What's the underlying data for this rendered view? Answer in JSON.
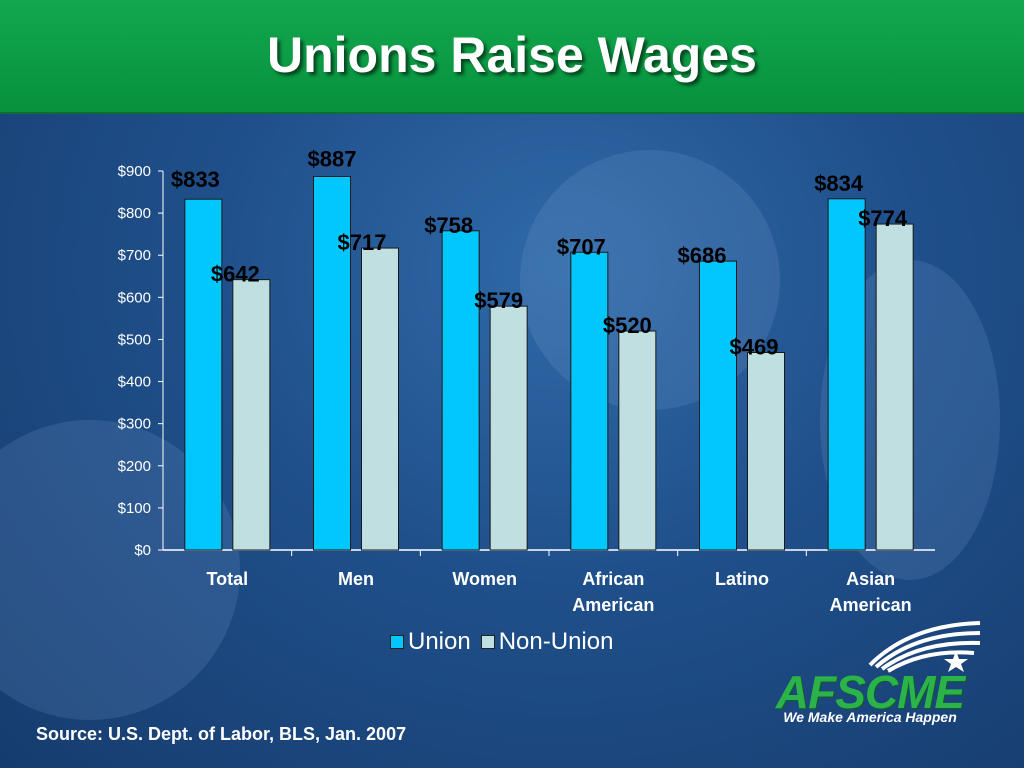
{
  "title": "Unions Raise Wages",
  "source": "Source: U.S. Dept. of Labor, BLS, Jan. 2007",
  "logo": {
    "name": "AFSCME",
    "tagline": "We Make America Happen"
  },
  "colors": {
    "union": "#00c8ff",
    "non_union": "#bfdfe0",
    "header": "#0a9a43"
  },
  "chart_data": {
    "type": "bar",
    "categories": [
      [
        "Total"
      ],
      [
        "Men"
      ],
      [
        "Women"
      ],
      [
        "African",
        "American"
      ],
      [
        "Latino"
      ],
      [
        "Asian",
        "American"
      ]
    ],
    "series": [
      {
        "name": "Union",
        "values": [
          833,
          887,
          758,
          707,
          686,
          834
        ],
        "labels": [
          "$833",
          "$887",
          "$758",
          "$707",
          "$686",
          "$834"
        ]
      },
      {
        "name": "Non-Union",
        "values": [
          642,
          717,
          579,
          520,
          469,
          774
        ],
        "labels": [
          "$642",
          "$717",
          "$579",
          "$520",
          "$469",
          "$774"
        ]
      }
    ],
    "ylim": [
      0,
      900
    ],
    "yticks": [
      0,
      100,
      200,
      300,
      400,
      500,
      600,
      700,
      800,
      900
    ],
    "ytick_labels": [
      "$0",
      "$100",
      "$200",
      "$300",
      "$400",
      "$500",
      "$600",
      "$700",
      "$800",
      "$900"
    ],
    "legend_position": "bottom",
    "grid": false
  }
}
